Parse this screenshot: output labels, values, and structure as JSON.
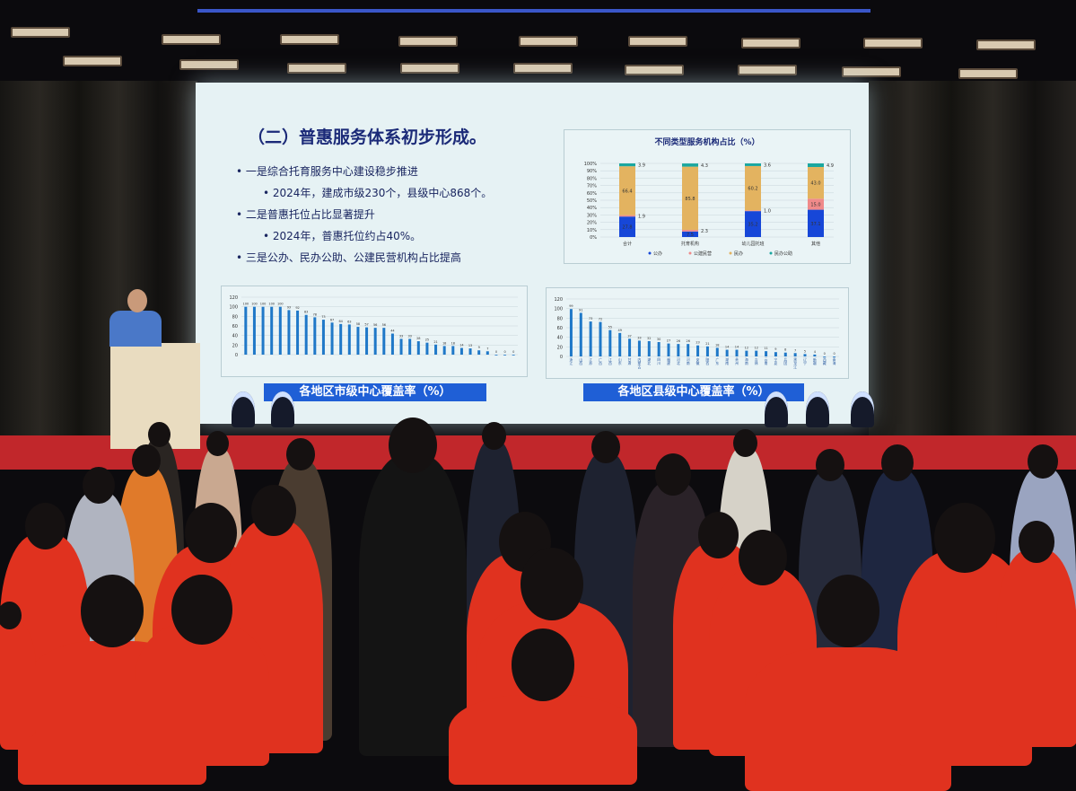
{
  "slide": {
    "title": "（二）普惠服务体系初步形成。",
    "bullets": [
      {
        "text": "一是综合托育服务中心建设稳步推进",
        "sub": "2024年，建成市级230个，县级中心868个。"
      },
      {
        "text": "二是普惠托位占比显著提升",
        "sub": "2024年，普惠托位约占40%。"
      },
      {
        "text": "三是公办、民办公助、公建民营机构占比提高",
        "sub": ""
      }
    ]
  },
  "chart_data": [
    {
      "type": "bar",
      "stacked": true,
      "title": "不同类型服务机构占比（%）",
      "categories": [
        "合计",
        "托育机构",
        "幼儿园托班",
        "其他"
      ],
      "series": [
        {
          "name": "公办",
          "values": [
            27.8,
            7.5,
            35.2,
            37.1
          ],
          "color": "#1747d8"
        },
        {
          "name": "公建民营",
          "values": [
            1.9,
            2.3,
            1.0,
            15.0
          ],
          "color": "#f08a8a"
        },
        {
          "name": "民办",
          "values": [
            66.4,
            85.8,
            60.2,
            43.0
          ],
          "color": "#e3b360"
        },
        {
          "name": "民办公助",
          "values": [
            3.9,
            4.3,
            3.6,
            4.9
          ],
          "color": "#1aa7a0"
        }
      ],
      "ylim": [
        0,
        100
      ],
      "yticks": [
        "0%",
        "10%",
        "20%",
        "30%",
        "40%",
        "50%",
        "60%",
        "70%",
        "80%",
        "90%",
        "100%"
      ],
      "legend": "bottom"
    },
    {
      "type": "bar",
      "caption": "各地区市级中心覆盖率（%）",
      "values": [
        100,
        100,
        100,
        100,
        100,
        93,
        92,
        83,
        78,
        73,
        67,
        64,
        63,
        58,
        57,
        56,
        56,
        44,
        33,
        33,
        28,
        25,
        21,
        18,
        18,
        14,
        13,
        9,
        7,
        0,
        0,
        0
      ],
      "ylim": [
        0,
        120
      ],
      "yticks": [
        "0",
        "20",
        "40",
        "60",
        "80",
        "100",
        "120"
      ],
      "color": "#1f78c8"
    },
    {
      "type": "bar",
      "caption": "各地区县级中心覆盖率（%）",
      "categories": [
        "浙江",
        "山西",
        "江苏",
        "广西",
        "江西",
        "山东",
        "甘肃",
        "内蒙古",
        "湖北",
        "四川",
        "福建",
        "河北",
        "河南",
        "安徽",
        "陕西",
        "广东",
        "湖南",
        "贵州",
        "海南",
        "吉林",
        "云南",
        "宁夏",
        "兵团",
        "黑龙江",
        "辽宁",
        "新疆",
        "西藏",
        "青海"
      ],
      "values": [
        99,
        91,
        73,
        72,
        55,
        49,
        37,
        33,
        32,
        30,
        27,
        26,
        26,
        23,
        21,
        18,
        14,
        14,
        12,
        12,
        11,
        9,
        8,
        7,
        5,
        4,
        0,
        0
      ],
      "ylim": [
        0,
        120
      ],
      "yticks": [
        "0",
        "20",
        "40",
        "60",
        "80",
        "100",
        "120"
      ],
      "color": "#1f78c8"
    }
  ],
  "colors": {
    "stage": "#c1272b",
    "jacket": "#e0321f",
    "screen_bg": "#e6f2f4"
  }
}
